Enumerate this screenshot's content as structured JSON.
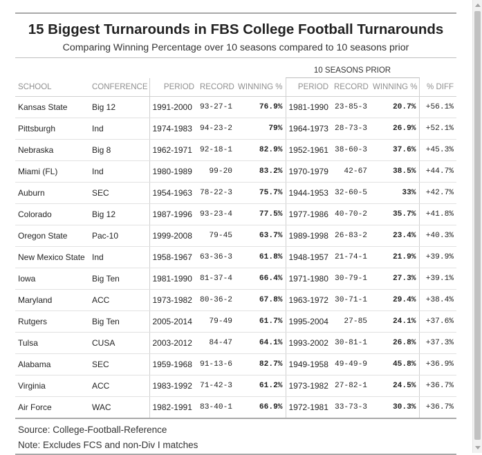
{
  "title": "15 Biggest Turnarounds in FBS College Football Turnarounds",
  "subtitle": "Comparing Winning Percentage over 10 seasons compared to 10 seasons prior",
  "spanner_label": "10 SEASONS PRIOR",
  "columns": [
    "SCHOOL",
    "CONFERENCE",
    "PERIOD",
    "RECORD",
    "WINNING %",
    "PERIOD",
    "RECORD",
    "WINNING %",
    "% DIFF"
  ],
  "source_note": "Source: College-Football-Reference",
  "footnote": "Note: Excludes FCS and non-Div I matches",
  "chart_data": {
    "type": "table",
    "title": "15 Biggest Turnarounds in FBS College Football Turnarounds",
    "subtitle": "Comparing Winning Percentage over 10 seasons compared to 10 seasons prior",
    "rows": [
      {
        "school": "Kansas State",
        "conference": "Big 12",
        "period": "1991-2000",
        "record": "93-27-1",
        "win_pct": "76.9%",
        "prior_period": "1981-1990",
        "prior_record": "23-85-3",
        "prior_win_pct": "20.7%",
        "pct_diff": "+56.1%"
      },
      {
        "school": "Pittsburgh",
        "conference": "Ind",
        "period": "1974-1983",
        "record": "94-23-2",
        "win_pct": "79%",
        "prior_period": "1964-1973",
        "prior_record": "28-73-3",
        "prior_win_pct": "26.9%",
        "pct_diff": "+52.1%"
      },
      {
        "school": "Nebraska",
        "conference": "Big 8",
        "period": "1962-1971",
        "record": "92-18-1",
        "win_pct": "82.9%",
        "prior_period": "1952-1961",
        "prior_record": "38-60-3",
        "prior_win_pct": "37.6%",
        "pct_diff": "+45.3%"
      },
      {
        "school": "Miami (FL)",
        "conference": "Ind",
        "period": "1980-1989",
        "record": "99-20",
        "win_pct": "83.2%",
        "prior_period": "1970-1979",
        "prior_record": "42-67",
        "prior_win_pct": "38.5%",
        "pct_diff": "+44.7%"
      },
      {
        "school": "Auburn",
        "conference": "SEC",
        "period": "1954-1963",
        "record": "78-22-3",
        "win_pct": "75.7%",
        "prior_period": "1944-1953",
        "prior_record": "32-60-5",
        "prior_win_pct": "33%",
        "pct_diff": "+42.7%"
      },
      {
        "school": "Colorado",
        "conference": "Big 12",
        "period": "1987-1996",
        "record": "93-23-4",
        "win_pct": "77.5%",
        "prior_period": "1977-1986",
        "prior_record": "40-70-2",
        "prior_win_pct": "35.7%",
        "pct_diff": "+41.8%"
      },
      {
        "school": "Oregon State",
        "conference": "Pac-10",
        "period": "1999-2008",
        "record": "79-45",
        "win_pct": "63.7%",
        "prior_period": "1989-1998",
        "prior_record": "26-83-2",
        "prior_win_pct": "23.4%",
        "pct_diff": "+40.3%"
      },
      {
        "school": "New Mexico State",
        "conference": "Ind",
        "period": "1958-1967",
        "record": "63-36-3",
        "win_pct": "61.8%",
        "prior_period": "1948-1957",
        "prior_record": "21-74-1",
        "prior_win_pct": "21.9%",
        "pct_diff": "+39.9%"
      },
      {
        "school": "Iowa",
        "conference": "Big Ten",
        "period": "1981-1990",
        "record": "81-37-4",
        "win_pct": "66.4%",
        "prior_period": "1971-1980",
        "prior_record": "30-79-1",
        "prior_win_pct": "27.3%",
        "pct_diff": "+39.1%"
      },
      {
        "school": "Maryland",
        "conference": "ACC",
        "period": "1973-1982",
        "record": "80-36-2",
        "win_pct": "67.8%",
        "prior_period": "1963-1972",
        "prior_record": "30-71-1",
        "prior_win_pct": "29.4%",
        "pct_diff": "+38.4%"
      },
      {
        "school": "Rutgers",
        "conference": "Big Ten",
        "period": "2005-2014",
        "record": "79-49",
        "win_pct": "61.7%",
        "prior_period": "1995-2004",
        "prior_record": "27-85",
        "prior_win_pct": "24.1%",
        "pct_diff": "+37.6%"
      },
      {
        "school": "Tulsa",
        "conference": "CUSA",
        "period": "2003-2012",
        "record": "84-47",
        "win_pct": "64.1%",
        "prior_period": "1993-2002",
        "prior_record": "30-81-1",
        "prior_win_pct": "26.8%",
        "pct_diff": "+37.3%"
      },
      {
        "school": "Alabama",
        "conference": "SEC",
        "period": "1959-1968",
        "record": "91-13-6",
        "win_pct": "82.7%",
        "prior_period": "1949-1958",
        "prior_record": "49-49-9",
        "prior_win_pct": "45.8%",
        "pct_diff": "+36.9%"
      },
      {
        "school": "Virginia",
        "conference": "ACC",
        "period": "1983-1992",
        "record": "71-42-3",
        "win_pct": "61.2%",
        "prior_period": "1973-1982",
        "prior_record": "27-82-1",
        "prior_win_pct": "24.5%",
        "pct_diff": "+36.7%"
      },
      {
        "school": "Air Force",
        "conference": "WAC",
        "period": "1982-1991",
        "record": "83-40-1",
        "win_pct": "66.9%",
        "prior_period": "1972-1981",
        "prior_record": "33-73-3",
        "prior_win_pct": "30.3%",
        "pct_diff": "+36.7%"
      }
    ]
  }
}
